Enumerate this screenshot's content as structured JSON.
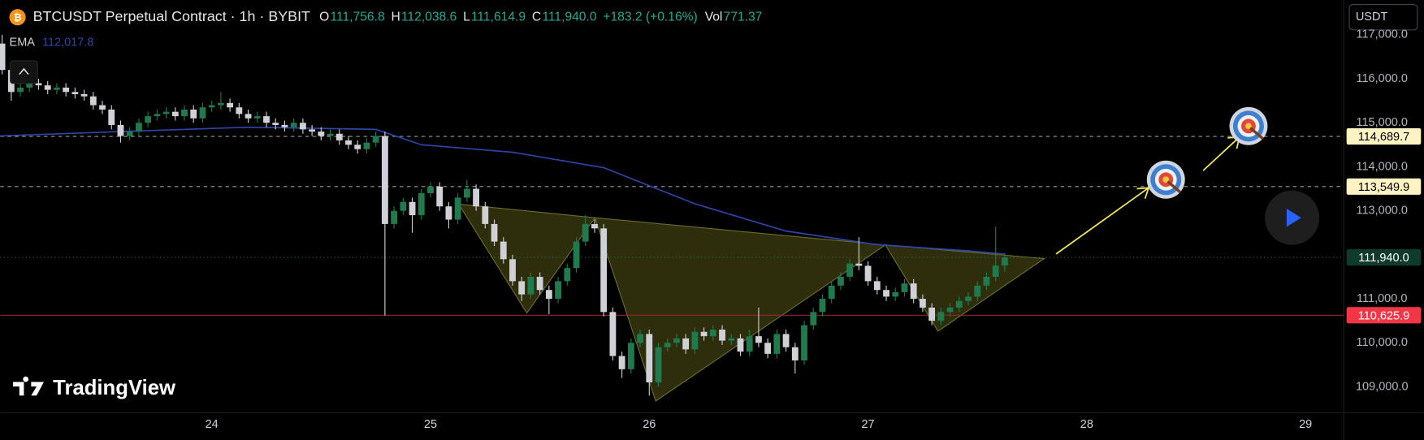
{
  "chart_data": {
    "type": "candlestick",
    "title": "BTCUSDT Perpetual Contract · 1h · BYBIT",
    "legend_items": [
      {
        "label": "O",
        "text": "111,756.8"
      },
      {
        "label": "H",
        "text": "112,038.6"
      },
      {
        "label": "L",
        "text": "111,614.9"
      },
      {
        "label": "C",
        "text": "111,940.0"
      }
    ],
    "change": "+183.2 (+0.16%)",
    "volume": {
      "label": "Vol",
      "text": "771.37"
    },
    "currency": "USDT",
    "brand": "TradingView",
    "up_color": "#1f7a4d",
    "down_color": "#cfd1d6",
    "xlim": [
      -0.2,
      147.2
    ],
    "xticks": [
      {
        "value": 23,
        "label": "24"
      },
      {
        "value": 47,
        "label": "25"
      },
      {
        "value": 71,
        "label": "26"
      },
      {
        "value": 95,
        "label": "27"
      },
      {
        "value": 119,
        "label": "28"
      },
      {
        "value": 143,
        "label": "29"
      }
    ],
    "ylim": [
      108410,
      117790
    ],
    "yticks": [
      {
        "value": 109000,
        "label": "109,000.0"
      },
      {
        "value": 110000,
        "label": "110,000.0"
      },
      {
        "value": 111000,
        "label": "111,000.0"
      },
      {
        "value": 113000,
        "label": "113,000.0"
      },
      {
        "value": 114000,
        "label": "114,000.0"
      },
      {
        "value": 115000,
        "label": "115,000.0"
      },
      {
        "value": 116000,
        "label": "116,000.0"
      },
      {
        "value": 117000,
        "label": "117,000.0"
      }
    ],
    "grid": false,
    "open": [
      116800,
      116200,
      115700,
      115800,
      115900,
      115850,
      115750,
      115800,
      115700,
      115650,
      115600,
      115400,
      115300,
      114950,
      114700,
      114800,
      115000,
      115150,
      115200,
      115250,
      115150,
      115300,
      115100,
      115350,
      115400,
      115450,
      115350,
      115200,
      115100,
      115150,
      115000,
      114950,
      114900,
      115000,
      114850,
      114800,
      114700,
      114750,
      114600,
      114500,
      114400,
      114550,
      114700,
      112700,
      113000,
      113200,
      112900,
      113400,
      113550,
      113100,
      112800,
      113300,
      113500,
      113100,
      112700,
      112300,
      111900,
      111400,
      111100,
      111500,
      111200,
      111000,
      111400,
      111700,
      112300,
      112700,
      112600,
      110700,
      109700,
      109400,
      110000,
      110200,
      109100,
      109900,
      110000,
      110100,
      109850,
      110250,
      110150,
      110300,
      110050,
      110100,
      109800,
      110150,
      110000,
      109750,
      110200,
      109900,
      109600,
      110400,
      110700,
      111000,
      111300,
      111500,
      111800,
      111750,
      111400,
      111200,
      111050,
      111150,
      111350,
      111000,
      110800,
      110500,
      110700,
      110800,
      110950,
      111050,
      111300,
      111500,
      111756.8
    ],
    "high": [
      117000,
      116300,
      115900,
      116000,
      116000,
      115950,
      115900,
      115900,
      115800,
      115750,
      115700,
      115500,
      115400,
      115050,
      114900,
      115100,
      115250,
      115300,
      115350,
      115350,
      115400,
      115400,
      115450,
      115500,
      115700,
      115550,
      115450,
      115300,
      115250,
      115250,
      115100,
      115050,
      115100,
      115100,
      114950,
      114900,
      114850,
      114850,
      114700,
      114600,
      114650,
      114800,
      114800,
      113100,
      113300,
      113300,
      113500,
      113650,
      113650,
      113200,
      113400,
      113700,
      113600,
      113200,
      112800,
      112400,
      112000,
      111500,
      111600,
      111600,
      111300,
      111500,
      111800,
      112400,
      112900,
      112800,
      112700,
      110800,
      109800,
      110100,
      110300,
      110300,
      110000,
      110100,
      110200,
      110200,
      110350,
      110350,
      110400,
      110400,
      110200,
      110200,
      110300,
      110800,
      110100,
      110300,
      110300,
      110000,
      110500,
      110800,
      111100,
      111400,
      111600,
      111900,
      112400,
      111850,
      111500,
      111300,
      111250,
      111450,
      111450,
      111100,
      110900,
      110800,
      110900,
      111050,
      111150,
      111400,
      111600,
      112640,
      112038.6
    ],
    "low": [
      116100,
      115500,
      115600,
      115700,
      115750,
      115650,
      115650,
      115600,
      115550,
      115500,
      115300,
      115200,
      114850,
      114550,
      114600,
      114700,
      114900,
      115050,
      115100,
      115050,
      115050,
      115000,
      115000,
      115250,
      115300,
      115250,
      115100,
      115000,
      115000,
      114900,
      114850,
      114800,
      114800,
      114750,
      114700,
      114600,
      114600,
      114500,
      114400,
      114300,
      114300,
      114450,
      110620,
      112600,
      112900,
      112500,
      112800,
      113300,
      113000,
      112600,
      112700,
      113200,
      113000,
      112600,
      112200,
      111800,
      111300,
      110950,
      111000,
      111100,
      110650,
      110900,
      111300,
      111600,
      112200,
      112500,
      110600,
      109600,
      109200,
      109300,
      109900,
      108800,
      109000,
      109800,
      109900,
      109750,
      109750,
      110050,
      110050,
      109950,
      109950,
      109700,
      109700,
      109900,
      109650,
      109650,
      109800,
      109300,
      109500,
      110300,
      110600,
      110900,
      111200,
      111400,
      111650,
      111300,
      111100,
      110950,
      110950,
      111050,
      110900,
      110700,
      110400,
      110400,
      110600,
      110700,
      110850,
      110950,
      111200,
      111400,
      111614.9
    ],
    "close": [
      116200,
      115700,
      115800,
      115900,
      115850,
      115750,
      115800,
      115700,
      115650,
      115600,
      115400,
      115300,
      114950,
      114700,
      114800,
      115000,
      115150,
      115200,
      115250,
      115150,
      115300,
      115100,
      115350,
      115400,
      115450,
      115350,
      115200,
      115100,
      115150,
      115000,
      114950,
      114900,
      115000,
      114850,
      114800,
      114700,
      114750,
      114600,
      114500,
      114400,
      114550,
      114700,
      112700,
      113000,
      113200,
      112900,
      113400,
      113550,
      113100,
      112800,
      113300,
      113500,
      113100,
      112700,
      112300,
      111900,
      111400,
      111100,
      111500,
      111200,
      111000,
      111400,
      111700,
      112300,
      112700,
      112600,
      110700,
      109700,
      109400,
      110000,
      110200,
      109100,
      109900,
      110000,
      110100,
      109850,
      110250,
      110150,
      110300,
      110050,
      110100,
      109800,
      110150,
      110000,
      109750,
      110200,
      109900,
      109600,
      110400,
      110700,
      111000,
      111300,
      111500,
      111800,
      111750,
      111400,
      111200,
      111050,
      111150,
      111350,
      111000,
      110800,
      110500,
      110700,
      110800,
      110950,
      111050,
      111300,
      111500,
      111756.8,
      111940
    ],
    "ema": {
      "name": "EMA",
      "color": "#2e46a8",
      "x": [
        -0.5,
        13,
        27,
        41,
        46,
        56,
        66,
        76,
        86,
        96,
        106,
        110
      ],
      "values": [
        114700,
        114800,
        114900,
        114850,
        114500,
        114330,
        113980,
        113160,
        112540,
        112230,
        112090,
        112017.8
      ],
      "value_labels": [
        null,
        null,
        null,
        null,
        null,
        null,
        null,
        null,
        null,
        null,
        null,
        "112,017.8"
      ]
    },
    "levels": [
      {
        "value": 114689.7,
        "label": "114,689.7",
        "dash": "dashed",
        "color": "#9a9a9a",
        "label_bg": "#fff3c4",
        "label_color": "#000000"
      },
      {
        "value": 113549.9,
        "label": "113,549.9",
        "dash": "dashed",
        "color": "#9a9a9a",
        "label_bg": "#fff3c4",
        "label_color": "#000000"
      },
      {
        "value": 111940,
        "label": "111,940.0",
        "dash": "dotted",
        "color": "#2d6b4f",
        "label_bg": "#0e3b2c",
        "label_color": "#ffffff"
      },
      {
        "value": 110625.9,
        "label": "110,625.9",
        "dash": "solid",
        "color": "#8c2a2a",
        "label_bg": "#f23645",
        "label_color": "#ffffff"
      }
    ]
  }
}
